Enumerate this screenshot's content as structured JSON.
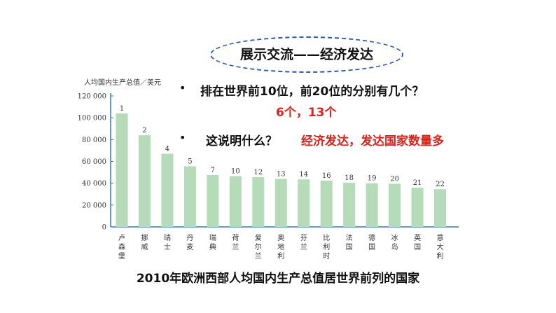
{
  "title": "展示交流——经济发达",
  "questions": [
    {
      "bullet": "•",
      "text": "排在世界前10位，前20位的分别有几个？",
      "answer": "6个，13个"
    },
    {
      "bullet": "•",
      "text": "这说明什么？",
      "answer": "经济发达，发达国家数量多"
    }
  ],
  "caption": "2010年欧洲西部人均国内生产总值居世界前列的国家",
  "colors": {
    "bar": "#b5dbb9",
    "axis": "#2e7fb8",
    "answer": "#e0201a",
    "oval": "#2e5aa8"
  },
  "chart_data": {
    "type": "bar",
    "ylabel": "人均国内生产总值／美元",
    "ylim": [
      0,
      120000
    ],
    "yticks": [
      0,
      20000,
      40000,
      60000,
      80000,
      100000,
      120000
    ],
    "ytick_labels": [
      "0",
      "20 000",
      "40 000",
      "60 000",
      "80 000",
      "100 000",
      "120 000"
    ],
    "categories": [
      "卢森堡",
      "挪威",
      "瑞士",
      "丹麦",
      "瑞典",
      "荷兰",
      "爱尔兰",
      "奥地利",
      "芬兰",
      "比利时",
      "法国",
      "德国",
      "冰岛",
      "英国",
      "意大利"
    ],
    "values": [
      104000,
      84000,
      67000,
      55500,
      47500,
      46500,
      45500,
      44000,
      43500,
      42500,
      40500,
      40000,
      39500,
      36000,
      34500
    ],
    "rank_labels": [
      "1",
      "2",
      "4",
      "5",
      "7",
      "10",
      "12",
      "13",
      "14",
      "16",
      "18",
      "19",
      "20",
      "21",
      "22"
    ],
    "grid": false,
    "legend": "none"
  }
}
